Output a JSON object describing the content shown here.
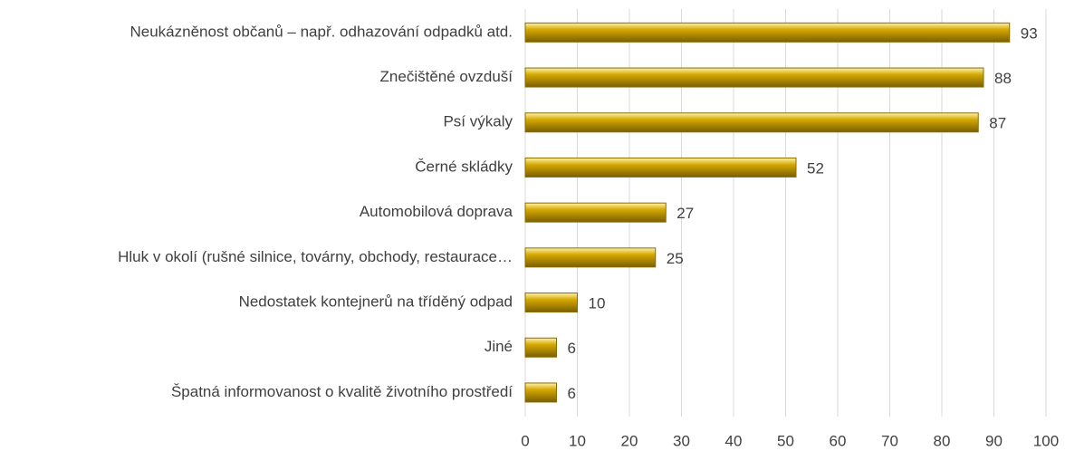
{
  "chart_data": {
    "type": "bar",
    "orientation": "horizontal",
    "categories": [
      "Neukázněnost občanů – např. odhazování odpadků atd.",
      "Znečištěné ovzduší",
      "Psí výkaly",
      "Černé skládky",
      "Automobilová doprava",
      "Hluk v okolí (rušné silnice, továrny, obchody, restaurace…",
      "Nedostatek kontejnerů na tříděný odpad",
      "Jiné",
      "Špatná informovanost o kvalitě životního prostředí"
    ],
    "values": [
      93,
      88,
      87,
      52,
      27,
      25,
      10,
      6,
      6
    ],
    "color": "#d4a800",
    "xlim": [
      0,
      100
    ],
    "xticks": [
      0,
      10,
      20,
      30,
      40,
      50,
      60,
      70,
      80,
      90,
      100
    ],
    "grid": true
  }
}
